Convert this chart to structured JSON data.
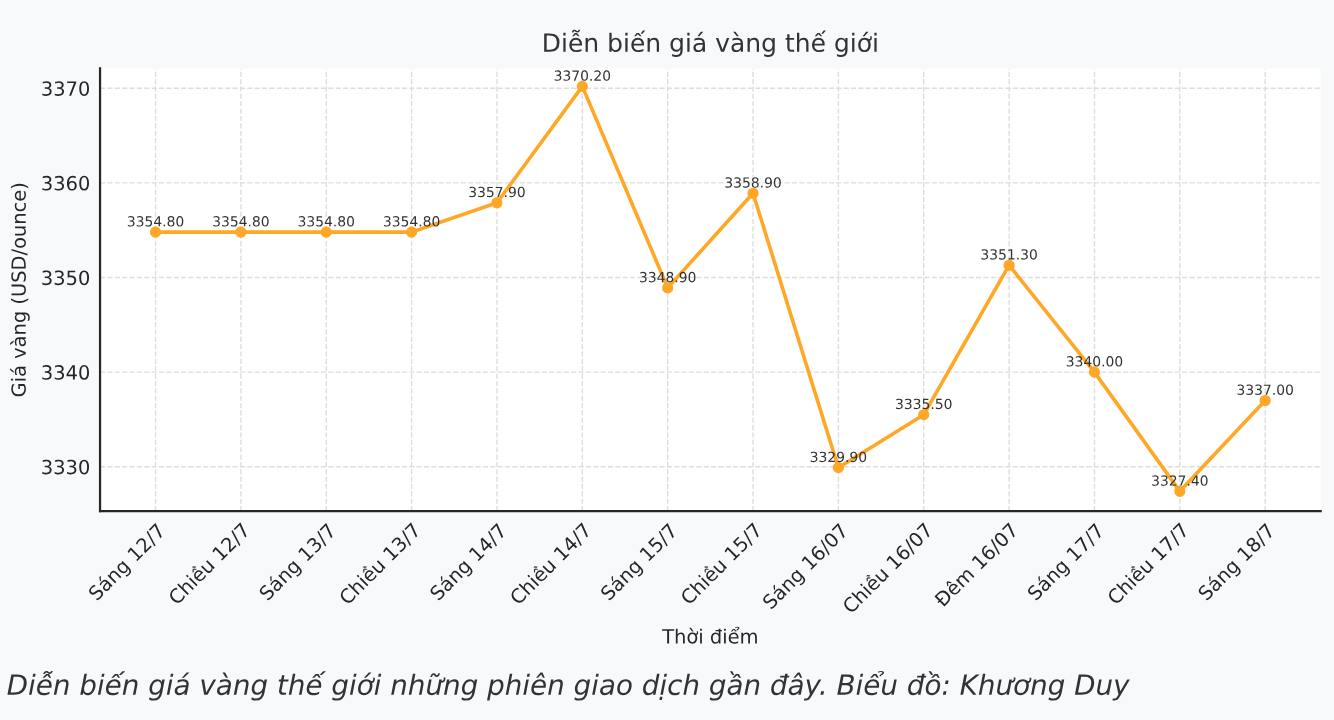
{
  "chart_data": {
    "type": "line",
    "title": "Diễn biến giá vàng thế giới",
    "xlabel": "Thời điểm",
    "ylabel": "Giá vàng (USD/ounce)",
    "categories": [
      "Sáng 12/7",
      "Chiều 12/7",
      "Sáng 13/7",
      "Chiều 13/7",
      "Sáng 14/7",
      "Chiều 14/7",
      "Sáng 15/7",
      "Chiều 15/7",
      "Sáng 16/07",
      "Chiều 16/07",
      "Đêm 16/07",
      "Sáng 17/7",
      "Chiều 17/7",
      "Sáng 18/7"
    ],
    "series": [
      {
        "color": "#ffa726",
        "values": [
          3354.8,
          3354.8,
          3354.8,
          3354.8,
          3357.9,
          3370.2,
          3348.9,
          3358.9,
          3329.9,
          3335.5,
          3351.3,
          3340.0,
          3327.4,
          3337.0
        ],
        "value_labels": [
          "3354.80",
          "3354.80",
          "3354.80",
          "3354.80",
          "3357.90",
          "3370.20",
          "3348.90",
          "3358.90",
          "3329.90",
          "3335.50",
          "3351.30",
          "3340.00",
          "3327.40",
          "3337.00"
        ]
      }
    ],
    "ylim": [
      3325.3,
      3372.1
    ],
    "yticks": [
      3330,
      3340,
      3350,
      3360,
      3370
    ],
    "grid": true,
    "marker": "circle",
    "line_style": "solid",
    "legend": false,
    "annotations": [
      "Diễn biến giá vàng thế giới những phiên giao dịch gần đây. Biểu đồ: Khương Duy"
    ]
  }
}
